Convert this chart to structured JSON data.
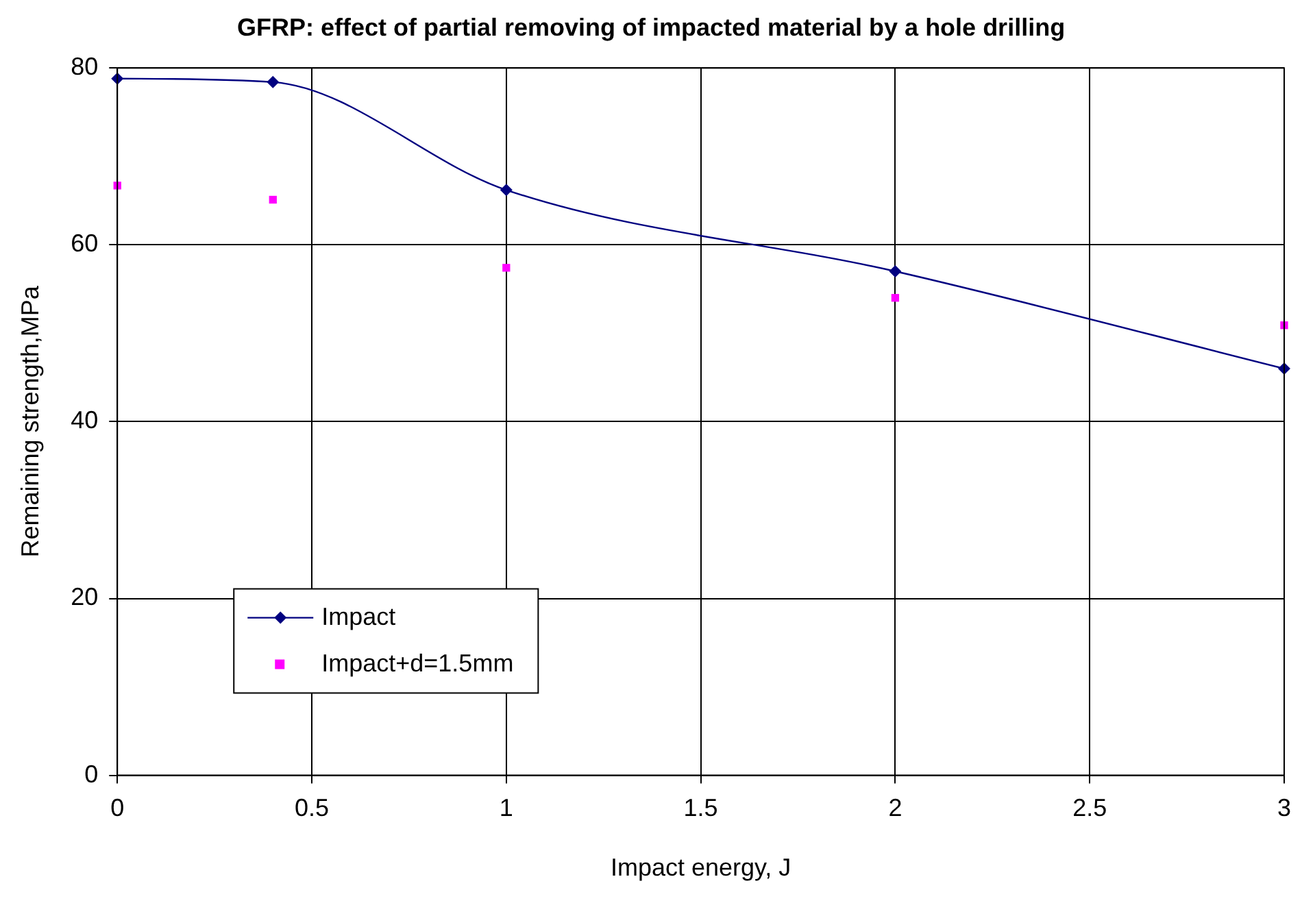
{
  "chart_data": {
    "type": "line",
    "title": "GFRP: effect of partial removing of impacted material by a hole drilling",
    "xlabel": "Impact energy, J",
    "ylabel": "Remaining strength,MPa",
    "xlim": [
      0,
      3
    ],
    "xticks": [
      0,
      0.5,
      1,
      1.5,
      2,
      2.5,
      3
    ],
    "ylim": [
      0,
      80
    ],
    "yticks": [
      0,
      20,
      40,
      60,
      80
    ],
    "grid": true,
    "legend": "bottom left",
    "series": [
      {
        "name": "Impact",
        "type": "line",
        "color": "#000080",
        "marker": "diamond",
        "x": [
          0,
          0.4,
          1,
          2,
          3
        ],
        "values": [
          78.8,
          78.4,
          66.2,
          57.0,
          46.0
        ]
      },
      {
        "name": "Impact+d=1.5mm",
        "type": "scatter",
        "color": "#ff00ff",
        "marker": "square",
        "x": [
          0,
          0.4,
          1,
          2,
          3
        ],
        "values": [
          66.7,
          65.1,
          57.4,
          54.0,
          50.9
        ]
      }
    ]
  }
}
